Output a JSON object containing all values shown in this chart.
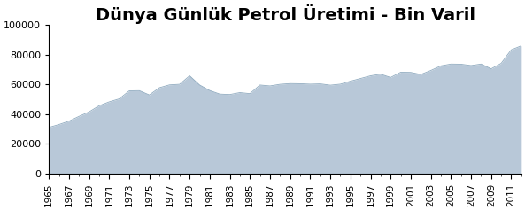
{
  "title": "Dünya Günlük Petrol Üretimi - Bin Varil",
  "years": [
    1965,
    1966,
    1967,
    1968,
    1969,
    1970,
    1971,
    1972,
    1973,
    1974,
    1975,
    1976,
    1977,
    1978,
    1979,
    1980,
    1981,
    1982,
    1983,
    1984,
    1985,
    1986,
    1987,
    1988,
    1989,
    1990,
    1991,
    1992,
    1993,
    1994,
    1995,
    1996,
    1997,
    1998,
    1999,
    2000,
    2001,
    2002,
    2003,
    2004,
    2005,
    2006,
    2007,
    2008,
    2009,
    2010,
    2011,
    2012
  ],
  "values": [
    31070,
    33020,
    35320,
    38540,
    41530,
    45670,
    48280,
    50290,
    55700,
    55800,
    52900,
    57800,
    59700,
    60100,
    65800,
    59600,
    55900,
    53500,
    53200,
    54500,
    53800,
    59600,
    59000,
    60100,
    60600,
    60500,
    60200,
    60400,
    59500,
    60200,
    62200,
    64000,
    65800,
    66900,
    64700,
    68200,
    68100,
    66700,
    69400,
    72500,
    73700,
    73600,
    72700,
    73700,
    70500,
    74200,
    83300,
    86000
  ],
  "fill_color": "#b8c8d8",
  "line_color": "#8faabf",
  "background_color": "#ffffff",
  "ylim": [
    0,
    100000
  ],
  "yticks": [
    0,
    20000,
    40000,
    60000,
    80000,
    100000
  ],
  "title_fontsize": 14,
  "title_fontweight": "bold",
  "tick_fontsize": 7.5,
  "ytick_fontsize": 8
}
